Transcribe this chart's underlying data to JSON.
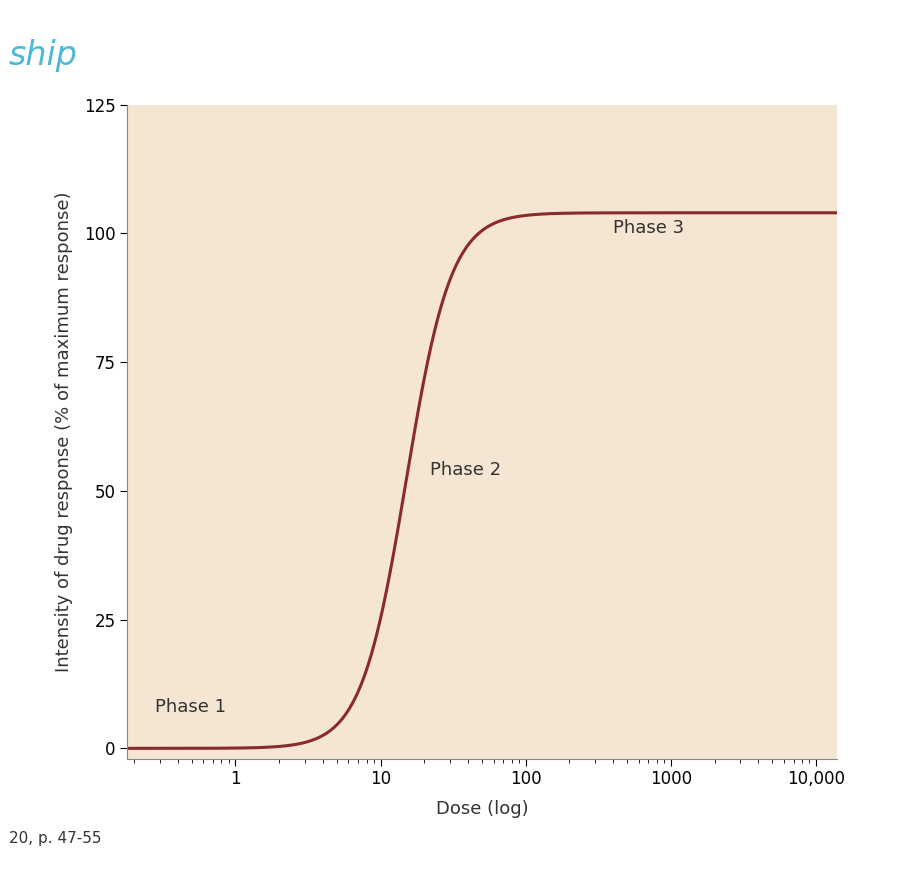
{
  "title": "",
  "xlabel": "Dose (log)",
  "ylabel": "Intensity of drug response (% of maximum response)",
  "background_color": "#f5e6d3",
  "figure_bg": "#ffffff",
  "curve_color": "#8b2a2a",
  "curve_linewidth": 2.2,
  "xscale": "log",
  "xlim_left": 0.18,
  "xlim_right": 14000,
  "ylim": [
    -2,
    125
  ],
  "yticks": [
    0,
    25,
    50,
    75,
    100,
    125
  ],
  "phase1_label": "Phase 1",
  "phase1_x": 0.28,
  "phase1_y": 8,
  "phase2_label": "Phase 2",
  "phase2_x": 22,
  "phase2_y": 54,
  "phase3_label": "Phase 3",
  "phase3_x": 400,
  "phase3_y": 101,
  "sigmoid_emax": 104,
  "sigmoid_ec50": 15,
  "sigmoid_n": 2.8,
  "footer_text": "20, p. 47-55",
  "header_text": "ship",
  "header_color": "#4ab8d8",
  "label_fontsize": 13,
  "phase_fontsize": 13,
  "tick_fontsize": 12,
  "text_color": "#333333",
  "spine_color": "#888888"
}
